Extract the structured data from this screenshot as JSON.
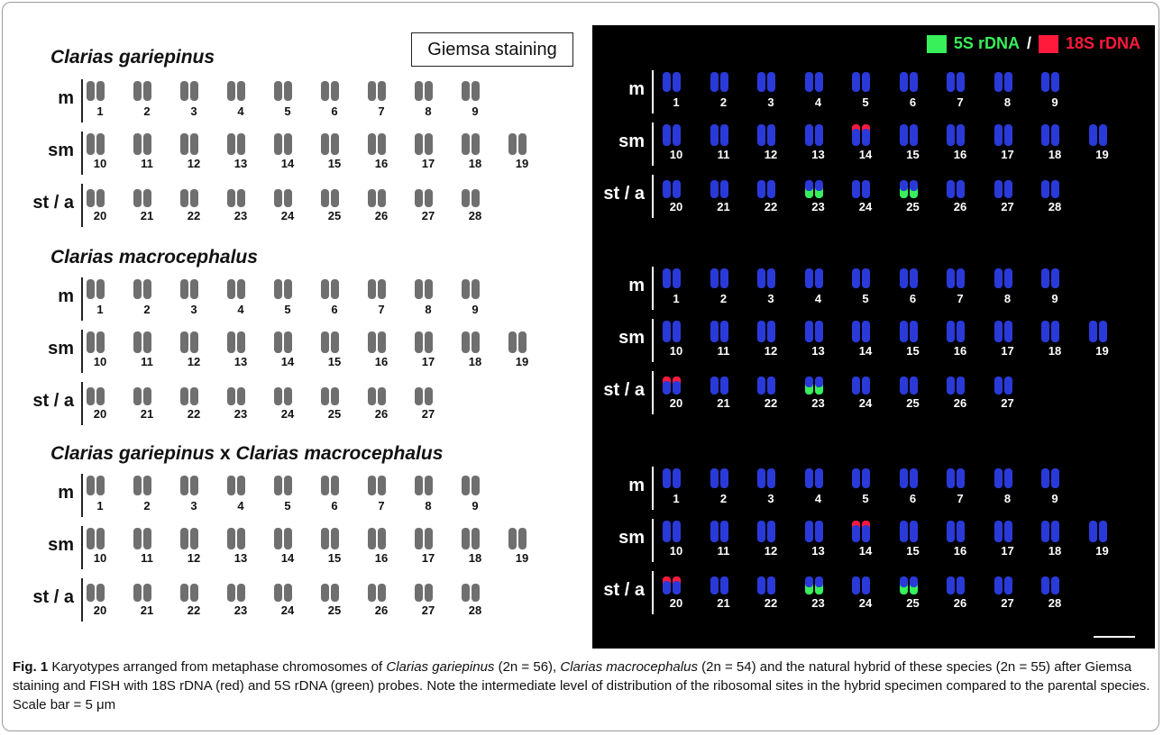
{
  "left_panel": {
    "badge": "Giemsa staining",
    "species": [
      {
        "title_a": "Clarias gariepinus",
        "title_x": "",
        "title_b": ""
      },
      {
        "title_a": "Clarias macrocephalus",
        "title_x": "",
        "title_b": ""
      },
      {
        "title_a": "Clarias gariepinus",
        "title_x": " x ",
        "title_b": "Clarias macrocephalus"
      }
    ]
  },
  "right_panel": {
    "legend": {
      "green_label": "5S rDNA",
      "slash": "/",
      "red_label": "18S rDNA",
      "green_color": "#37f05a",
      "red_color": "#ff1a3c"
    }
  },
  "row_labels": [
    "m",
    "sm",
    "st / a"
  ],
  "karyotypes": [
    {
      "m": [
        "1",
        "2",
        "3",
        "4",
        "5",
        "6",
        "7",
        "8",
        "9"
      ],
      "sm": [
        "10",
        "11",
        "12",
        "13",
        "14",
        "15",
        "16",
        "17",
        "18",
        "19"
      ],
      "sta": [
        "20",
        "21",
        "22",
        "23",
        "24",
        "25",
        "26",
        "27",
        "28"
      ]
    },
    {
      "m": [
        "1",
        "2",
        "3",
        "4",
        "5",
        "6",
        "7",
        "8",
        "9"
      ],
      "sm": [
        "10",
        "11",
        "12",
        "13",
        "14",
        "15",
        "16",
        "17",
        "18",
        "19"
      ],
      "sta": [
        "20",
        "21",
        "22",
        "23",
        "24",
        "25",
        "26",
        "27"
      ]
    },
    {
      "m": [
        "1",
        "2",
        "3",
        "4",
        "5",
        "6",
        "7",
        "8",
        "9"
      ],
      "sm": [
        "10",
        "11",
        "12",
        "13",
        "14",
        "15",
        "16",
        "17",
        "18",
        "19"
      ],
      "sta": [
        "20",
        "21",
        "22",
        "23",
        "24",
        "25",
        "26",
        "27",
        "28"
      ]
    }
  ],
  "fish_signals": [
    {
      "red": [
        "14"
      ],
      "green": [
        "23",
        "25"
      ]
    },
    {
      "red": [
        "20"
      ],
      "green": [
        "23"
      ]
    },
    {
      "red": [
        "14",
        "20"
      ],
      "green": [
        "23",
        "25"
      ]
    }
  ],
  "colors": {
    "giemsa_chromosome": "#6f6f6f",
    "fish_chromosome": "#2a3ad8",
    "fish_background": "#000000"
  },
  "caption": {
    "fig": "Fig. 1",
    "t1": " Karyotypes arranged from metaphase chromosomes of ",
    "s1": "Clarias gariepinus",
    "t2": " (2n = 56), ",
    "s2": "Clarias macrocephalus",
    "t3": " (2n = 54) and the natural hybrid of these species (2n = 55) after Giemsa staining and FISH with 18S rDNA (red) and 5S rDNA (green) probes. Note the intermediate level of distribution of the ribosomal sites in the hybrid specimen compared to the parental species. Scale bar = 5 μm"
  }
}
